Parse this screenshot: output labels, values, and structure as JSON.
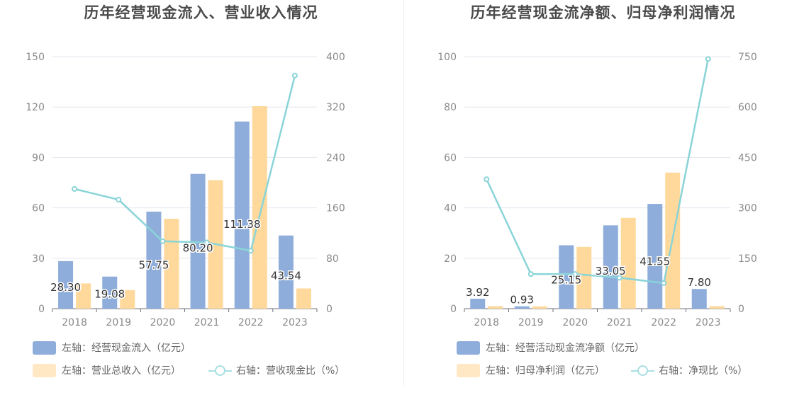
{
  "chart_data": [
    {
      "type": "bar",
      "title": "历年经营现金流入、营业收入情况",
      "categories": [
        "2018",
        "2019",
        "2020",
        "2021",
        "2022",
        "2023"
      ],
      "left_axis": {
        "ylim": [
          0,
          150
        ],
        "ticks": [
          "0",
          "30",
          "60",
          "90",
          "120",
          "150"
        ]
      },
      "right_axis": {
        "ylim": [
          0,
          400
        ],
        "ticks": [
          "0",
          "80",
          "160",
          "240",
          "320",
          "400"
        ]
      },
      "series": [
        {
          "name": "左轴：经营现金流入（亿元）",
          "type": "bar",
          "axis": "left",
          "color": "#8eaddb",
          "values": [
            28.3,
            19.08,
            57.75,
            80.2,
            111.38,
            43.54
          ],
          "labels": [
            "28.30",
            "19.08",
            "57.75",
            "80.20",
            "111.38",
            "43.54"
          ]
        },
        {
          "name": "左轴：营业总收入（亿元）",
          "type": "bar",
          "axis": "left",
          "color": "#ffd99b",
          "values": [
            15.0,
            11.0,
            53.5,
            76.5,
            120.5,
            12.0
          ]
        },
        {
          "name": "右轴：营收现金比（%）",
          "type": "line",
          "axis": "right",
          "color": "#8ad4d8",
          "values": [
            190,
            173,
            107,
            105,
            92,
            370
          ]
        }
      ],
      "grid": true,
      "legend_position": "bottom-left"
    },
    {
      "type": "bar",
      "title": "历年经营现金流净额、归母净利润情况",
      "categories": [
        "2018",
        "2019",
        "2020",
        "2021",
        "2022",
        "2023"
      ],
      "left_axis": {
        "ylim": [
          0,
          100
        ],
        "ticks": [
          "0",
          "20",
          "40",
          "60",
          "80",
          "100"
        ]
      },
      "right_axis": {
        "ylim": [
          0,
          750
        ],
        "ticks": [
          "0",
          "150",
          "300",
          "450",
          "600",
          "750"
        ]
      },
      "series": [
        {
          "name": "左轴：经营活动现金流净额（亿元）",
          "type": "bar",
          "axis": "left",
          "color": "#8eaddb",
          "values": [
            3.92,
            0.93,
            25.15,
            33.05,
            41.55,
            7.8
          ],
          "labels": [
            "3.92",
            "0.93",
            "25.15",
            "33.05",
            "41.55",
            "7.80"
          ]
        },
        {
          "name": "左轴：归母净利润（亿元）",
          "type": "bar",
          "axis": "left",
          "color": "#ffd99b",
          "values": [
            1.0,
            0.9,
            24.5,
            36.0,
            54.0,
            1.0
          ]
        },
        {
          "name": "右轴：净现比（%）",
          "type": "line",
          "axis": "right",
          "color": "#8ad4d8",
          "values": [
            385,
            103,
            103,
            92,
            76,
            743
          ]
        }
      ],
      "grid": true,
      "legend_position": "bottom-left"
    }
  ]
}
